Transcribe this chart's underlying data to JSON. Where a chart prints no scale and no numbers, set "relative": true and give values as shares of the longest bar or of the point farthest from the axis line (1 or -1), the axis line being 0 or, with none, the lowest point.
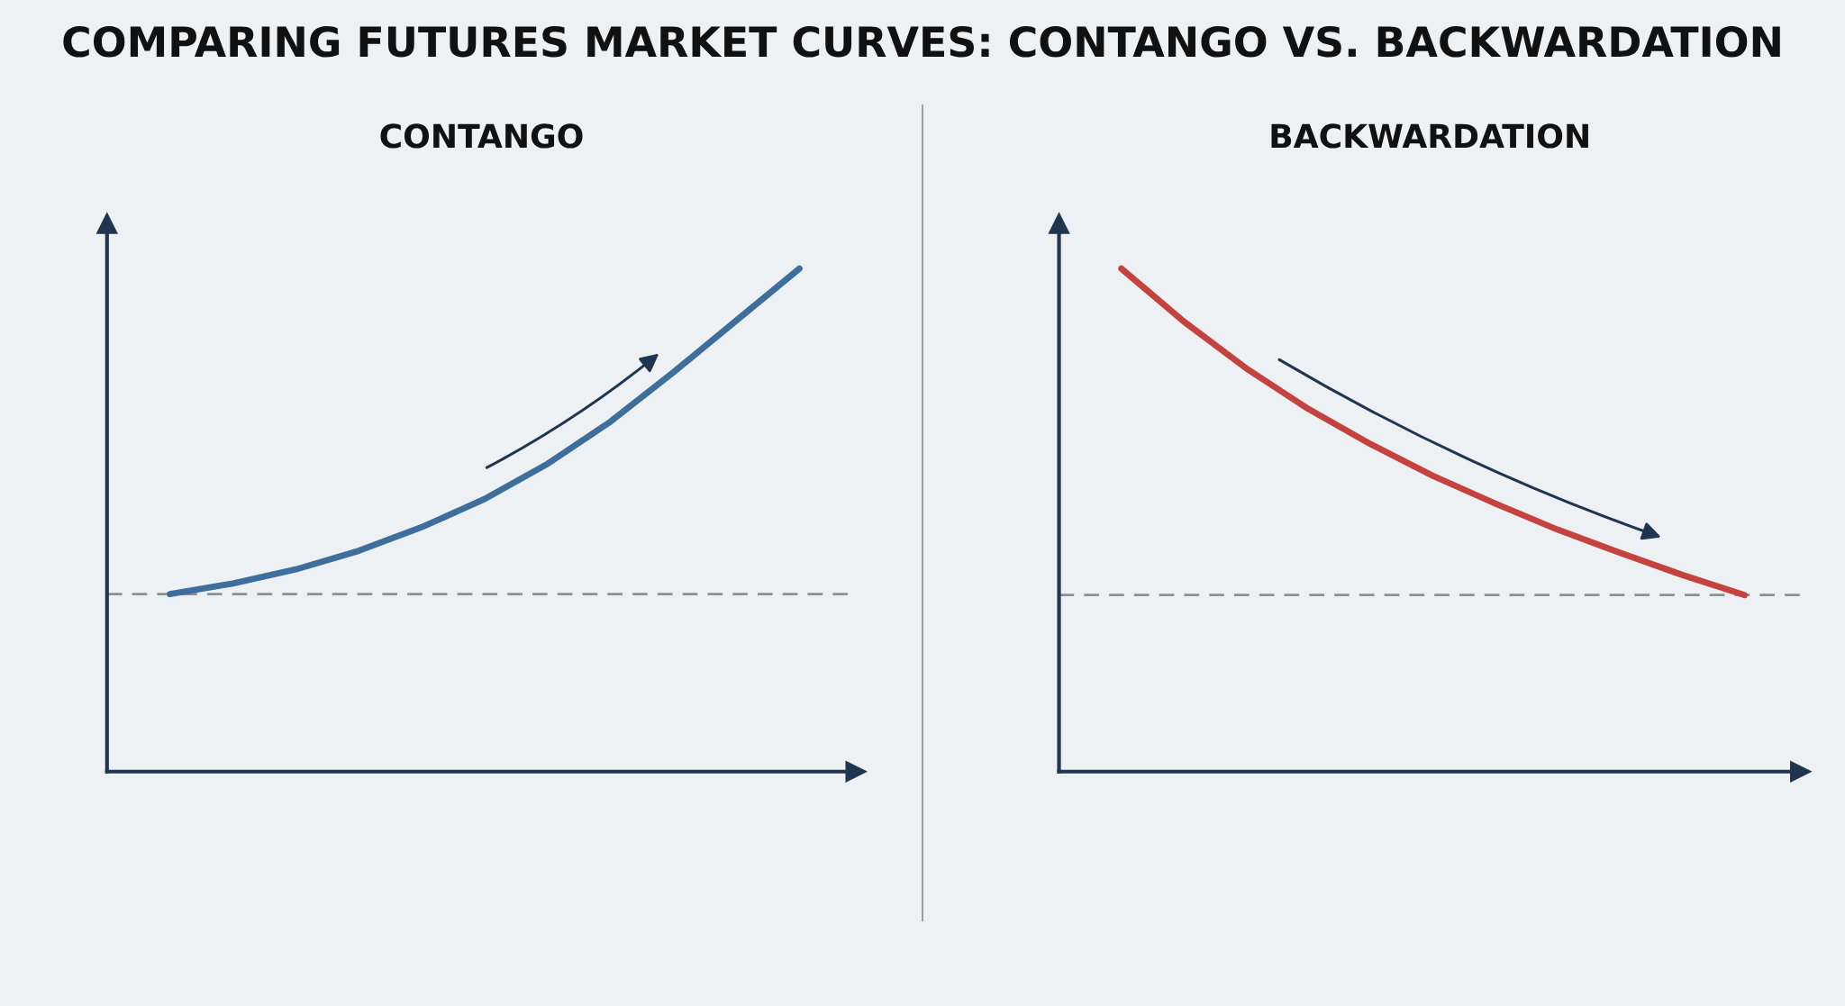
{
  "chart_data": [
    {
      "type": "line",
      "title": "CONTANGO",
      "annotations": [
        "COMPARING FUTURES MARKET CURVES: CONTANGO VS. BACKWARDATION"
      ],
      "relative": true,
      "tick_labels": false,
      "categories": [
        null,
        null,
        null,
        null,
        null,
        null,
        null,
        null,
        null,
        null,
        null
      ],
      "series": [
        {
          "color": "#3e6f9c",
          "values": [
            0.353,
            0.374,
            0.402,
            0.439,
            0.486,
            0.542,
            0.612,
            0.696,
            0.794,
            0.897,
            1
          ]
        }
      ],
      "ref_lines": [
        {
          "axis": "y",
          "value": 0.353,
          "color": "#8c9097",
          "line_style": "dashed"
        }
      ]
    },
    {
      "type": "line",
      "title": "BACKWARDATION",
      "relative": true,
      "tick_labels": false,
      "categories": [
        null,
        null,
        null,
        null,
        null,
        null,
        null,
        null,
        null,
        null,
        null
      ],
      "series": [
        {
          "color": "#c5433f",
          "values": [
            1,
            0.895,
            0.802,
            0.721,
            0.651,
            0.588,
            0.533,
            0.481,
            0.435,
            0.391,
            0.351
          ]
        }
      ],
      "ref_lines": [
        {
          "axis": "y",
          "value": 0.351,
          "color": "#8c9097",
          "line_style": "dashed"
        }
      ]
    }
  ]
}
